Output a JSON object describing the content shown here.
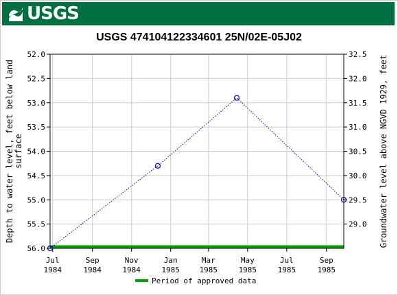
{
  "banner": {
    "logo_text": "USGS",
    "color": "#006f41"
  },
  "chart_data": {
    "type": "line",
    "title": "USGS 474104122334601 25N/02E-05J02",
    "ylabel_left": "Depth to water level, feet below land surface",
    "ylabel_right": "Groundwater level above NGVD 1929, feet",
    "ylim_left": [
      52.0,
      56.0
    ],
    "ylim_right": [
      28.5,
      32.5
    ],
    "left_ticks": [
      "52.0",
      "52.5",
      "53.0",
      "53.5",
      "54.0",
      "54.5",
      "55.0",
      "55.5",
      "56.0"
    ],
    "right_ticks": [
      "32.5",
      "32.0",
      "31.5",
      "31.0",
      "30.5",
      "30.0",
      "29.5",
      "29.0"
    ],
    "x_ticks": [
      {
        "month": "Jul",
        "year": "1984",
        "date": "1984-07-01"
      },
      {
        "month": "Sep",
        "year": "1984",
        "date": "1984-09-01"
      },
      {
        "month": "Nov",
        "year": "1984",
        "date": "1984-11-01"
      },
      {
        "month": "Jan",
        "year": "1985",
        "date": "1985-01-01"
      },
      {
        "month": "Mar",
        "year": "1985",
        "date": "1985-03-01"
      },
      {
        "month": "May",
        "year": "1985",
        "date": "1985-05-01"
      },
      {
        "month": "Jul",
        "year": "1985",
        "date": "1985-07-01"
      },
      {
        "month": "Sep",
        "year": "1985",
        "date": "1985-09-01"
      }
    ],
    "xlim": [
      "1984-06-27",
      "1985-09-28"
    ],
    "series": [
      {
        "points": [
          {
            "date": "1984-06-27",
            "value": 56.0
          },
          {
            "date": "1984-12-12",
            "value": 54.3
          },
          {
            "date": "1985-04-14",
            "value": 52.9
          },
          {
            "date": "1985-09-28",
            "value": 55.0
          }
        ],
        "color": "#0000cc"
      }
    ],
    "approved_period": {
      "start": "1984-06-27",
      "end": "1985-09-28",
      "color": "#00a000"
    },
    "legend": {
      "label": "Period of approved data",
      "placement": "bottom-center"
    },
    "grid": true
  }
}
